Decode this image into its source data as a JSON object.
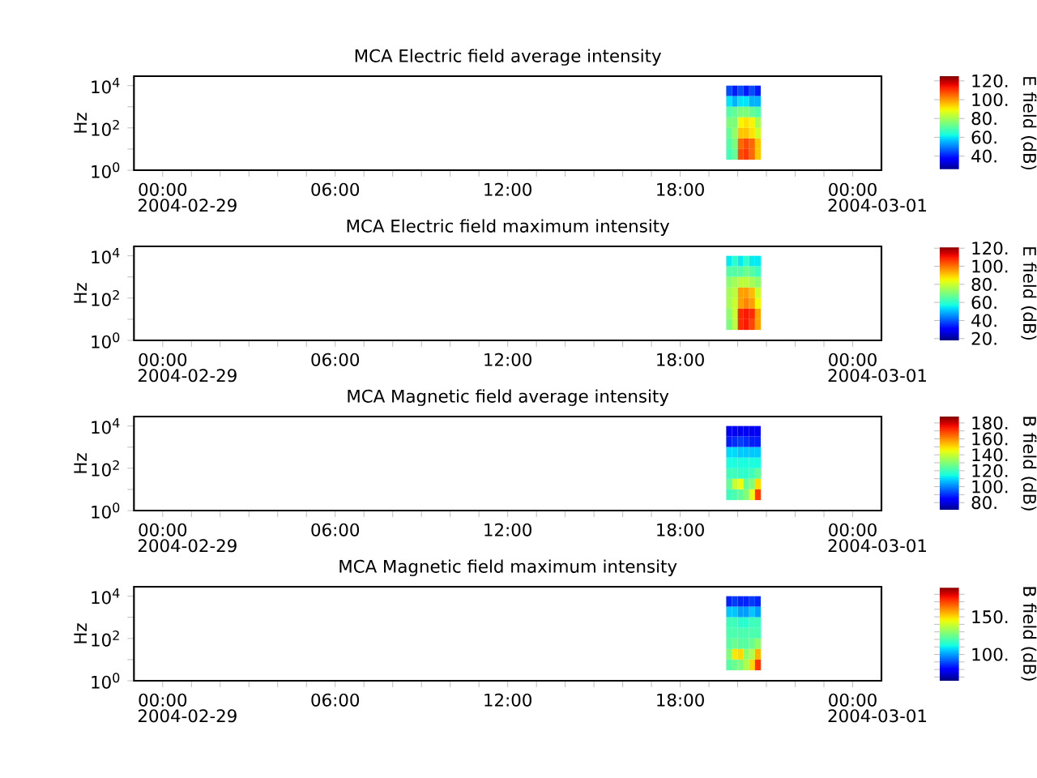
{
  "chart_data": [
    {
      "type": "heatmap",
      "title": "MCA  Electric field average intensity",
      "ylabel": "Hz",
      "clabel": "E field (dB)",
      "x": [
        19.7,
        19.9,
        20.1,
        20.3,
        20.5,
        20.7
      ],
      "y": [
        5623,
        1778,
        562,
        178,
        56,
        18,
        5.6
      ],
      "cells": [
        [
          45,
          40,
          45,
          40,
          45,
          40
        ],
        [
          60,
          55,
          60,
          60,
          55,
          55
        ],
        [
          70,
          72,
          75,
          75,
          72,
          70
        ],
        [
          75,
          75,
          90,
          92,
          90,
          80
        ],
        [
          72,
          78,
          95,
          95,
          92,
          85
        ],
        [
          70,
          75,
          105,
          108,
          105,
          95
        ],
        [
          68,
          72,
          108,
          110,
          105,
          95
        ]
      ],
      "clim": [
        25,
        125
      ],
      "cticks": [
        {
          "value": 40,
          "label": "40."
        },
        {
          "value": 60,
          "label": "60."
        },
        {
          "value": 80,
          "label": "80."
        },
        {
          "value": 100,
          "label": "100."
        },
        {
          "value": 120,
          "label": "120."
        }
      ],
      "log": "y",
      "xlim": [
        -1,
        25
      ],
      "ylim": [
        1,
        28000
      ],
      "xticks": [
        {
          "value": 0,
          "label": "00:00"
        },
        {
          "value": 1,
          "label": null
        },
        {
          "value": 2,
          "label": null
        },
        {
          "value": 3,
          "label": null
        },
        {
          "value": 4,
          "label": null
        },
        {
          "value": 5,
          "label": null
        },
        {
          "value": 6,
          "label": "06:00"
        },
        {
          "value": 7,
          "label": null
        },
        {
          "value": 8,
          "label": null
        },
        {
          "value": 9,
          "label": null
        },
        {
          "value": 10,
          "label": null
        },
        {
          "value": 11,
          "label": null
        },
        {
          "value": 12,
          "label": "12:00"
        },
        {
          "value": 13,
          "label": null
        },
        {
          "value": 14,
          "label": null
        },
        {
          "value": 15,
          "label": null
        },
        {
          "value": 16,
          "label": null
        },
        {
          "value": 17,
          "label": null
        },
        {
          "value": 18,
          "label": "18:00"
        },
        {
          "value": 19,
          "label": null
        },
        {
          "value": 20,
          "label": null
        },
        {
          "value": 21,
          "label": null
        },
        {
          "value": 22,
          "label": null
        },
        {
          "value": 23,
          "label": null
        },
        {
          "value": 24,
          "label": "00:00"
        }
      ],
      "yticks": [
        {
          "value": 1,
          "label": "10$^{0}$"
        },
        {
          "value": 10,
          "label": null
        },
        {
          "value": 100,
          "label": "10$^{2}$"
        },
        {
          "value": 1000,
          "label": null
        },
        {
          "value": 10000,
          "label": "10$^{4}$"
        }
      ],
      "annotations": [
        "2004-02-29",
        "2004-03-01"
      ]
    },
    {
      "type": "heatmap",
      "title": "MCA  Electric field maximum intensity",
      "ylabel": "Hz",
      "clabel": "E field (dB)",
      "x": [
        19.7,
        19.9,
        20.1,
        20.3,
        20.5,
        20.7
      ],
      "y": [
        5623,
        1778,
        562,
        178,
        56,
        18,
        5.6
      ],
      "cells": [
        [
          55,
          60,
          55,
          60,
          55,
          55
        ],
        [
          65,
          65,
          65,
          68,
          65,
          62
        ],
        [
          72,
          75,
          78,
          78,
          75,
          72
        ],
        [
          75,
          78,
          95,
          95,
          92,
          80
        ],
        [
          75,
          80,
          95,
          98,
          95,
          85
        ],
        [
          72,
          80,
          108,
          110,
          108,
          95
        ],
        [
          70,
          78,
          108,
          110,
          105,
          95
        ]
      ],
      "clim": [
        18,
        122
      ],
      "cticks": [
        {
          "value": 20,
          "label": "20."
        },
        {
          "value": 40,
          "label": "40."
        },
        {
          "value": 60,
          "label": "60."
        },
        {
          "value": 80,
          "label": "80."
        },
        {
          "value": 100,
          "label": "100."
        },
        {
          "value": 120,
          "label": "120."
        }
      ],
      "log": "y",
      "xlim": [
        -1,
        25
      ],
      "ylim": [
        1,
        28000
      ],
      "xticks": [
        {
          "value": 0,
          "label": "00:00"
        },
        {
          "value": 1,
          "label": null
        },
        {
          "value": 2,
          "label": null
        },
        {
          "value": 3,
          "label": null
        },
        {
          "value": 4,
          "label": null
        },
        {
          "value": 5,
          "label": null
        },
        {
          "value": 6,
          "label": "06:00"
        },
        {
          "value": 7,
          "label": null
        },
        {
          "value": 8,
          "label": null
        },
        {
          "value": 9,
          "label": null
        },
        {
          "value": 10,
          "label": null
        },
        {
          "value": 11,
          "label": null
        },
        {
          "value": 12,
          "label": "12:00"
        },
        {
          "value": 13,
          "label": null
        },
        {
          "value": 14,
          "label": null
        },
        {
          "value": 15,
          "label": null
        },
        {
          "value": 16,
          "label": null
        },
        {
          "value": 17,
          "label": null
        },
        {
          "value": 18,
          "label": "18:00"
        },
        {
          "value": 19,
          "label": null
        },
        {
          "value": 20,
          "label": null
        },
        {
          "value": 21,
          "label": null
        },
        {
          "value": 22,
          "label": null
        },
        {
          "value": 23,
          "label": null
        },
        {
          "value": 24,
          "label": "00:00"
        }
      ],
      "yticks": [
        {
          "value": 1,
          "label": "10$^{0}$"
        },
        {
          "value": 10,
          "label": null
        },
        {
          "value": 100,
          "label": "10$^{2}$"
        },
        {
          "value": 1000,
          "label": null
        },
        {
          "value": 10000,
          "label": "10$^{4}$"
        }
      ],
      "annotations": [
        "2004-02-29",
        "2004-03-01"
      ]
    },
    {
      "type": "heatmap",
      "title": "MCA  Magnetic field average intensity",
      "ylabel": "Hz",
      "clabel": "B field (dB)",
      "x": [
        19.7,
        19.9,
        20.1,
        20.3,
        20.5,
        20.7
      ],
      "y": [
        5623,
        1778,
        562,
        178,
        56,
        18,
        5.6
      ],
      "cells": [
        [
          82,
          82,
          82,
          82,
          82,
          82
        ],
        [
          88,
          90,
          92,
          90,
          88,
          88
        ],
        [
          110,
          110,
          108,
          108,
          108,
          108
        ],
        [
          115,
          115,
          115,
          115,
          115,
          115
        ],
        [
          120,
          120,
          118,
          118,
          120,
          125
        ],
        [
          125,
          140,
          145,
          125,
          130,
          150
        ],
        [
          120,
          122,
          125,
          130,
          145,
          170
        ]
      ],
      "clim": [
        70,
        188
      ],
      "cticks": [
        {
          "value": 80,
          "label": "80."
        },
        {
          "value": 90,
          "label": null
        },
        {
          "value": 100,
          "label": "100."
        },
        {
          "value": 110,
          "label": null
        },
        {
          "value": 120,
          "label": "120."
        },
        {
          "value": 130,
          "label": null
        },
        {
          "value": 140,
          "label": "140."
        },
        {
          "value": 150,
          "label": null
        },
        {
          "value": 160,
          "label": "160."
        },
        {
          "value": 170,
          "label": null
        },
        {
          "value": 180,
          "label": "180."
        }
      ],
      "log": "y",
      "xlim": [
        -1,
        25
      ],
      "ylim": [
        1,
        28000
      ],
      "xticks": [
        {
          "value": 0,
          "label": "00:00"
        },
        {
          "value": 1,
          "label": null
        },
        {
          "value": 2,
          "label": null
        },
        {
          "value": 3,
          "label": null
        },
        {
          "value": 4,
          "label": null
        },
        {
          "value": 5,
          "label": null
        },
        {
          "value": 6,
          "label": "06:00"
        },
        {
          "value": 7,
          "label": null
        },
        {
          "value": 8,
          "label": null
        },
        {
          "value": 9,
          "label": null
        },
        {
          "value": 10,
          "label": null
        },
        {
          "value": 11,
          "label": null
        },
        {
          "value": 12,
          "label": "12:00"
        },
        {
          "value": 13,
          "label": null
        },
        {
          "value": 14,
          "label": null
        },
        {
          "value": 15,
          "label": null
        },
        {
          "value": 16,
          "label": null
        },
        {
          "value": 17,
          "label": null
        },
        {
          "value": 18,
          "label": "18:00"
        },
        {
          "value": 19,
          "label": null
        },
        {
          "value": 20,
          "label": null
        },
        {
          "value": 21,
          "label": null
        },
        {
          "value": 22,
          "label": null
        },
        {
          "value": 23,
          "label": null
        },
        {
          "value": 24,
          "label": "00:00"
        }
      ],
      "yticks": [
        {
          "value": 1,
          "label": "10$^{0}$"
        },
        {
          "value": 10,
          "label": null
        },
        {
          "value": 100,
          "label": "10$^{2}$"
        },
        {
          "value": 1000,
          "label": null
        },
        {
          "value": 10000,
          "label": "10$^{4}$"
        }
      ],
      "annotations": [
        "2004-02-29",
        "2004-03-01"
      ]
    },
    {
      "type": "heatmap",
      "title": "MCA  Magnetic field maximum intensity",
      "ylabel": "Hz",
      "clabel": "B field (dB)",
      "x": [
        19.7,
        19.9,
        20.1,
        20.3,
        20.5,
        20.7
      ],
      "y": [
        5623,
        1778,
        562,
        178,
        56,
        18,
        5.6
      ],
      "cells": [
        [
          85,
          88,
          85,
          85,
          88,
          85
        ],
        [
          105,
          105,
          100,
          100,
          105,
          100
        ],
        [
          118,
          118,
          115,
          115,
          118,
          118
        ],
        [
          120,
          120,
          120,
          120,
          120,
          120
        ],
        [
          122,
          125,
          122,
          122,
          125,
          130
        ],
        [
          128,
          148,
          150,
          130,
          135,
          155
        ],
        [
          122,
          125,
          128,
          135,
          150,
          172
        ]
      ],
      "clim": [
        65,
        190
      ],
      "cticks": [
        {
          "value": 70,
          "label": null
        },
        {
          "value": 80,
          "label": null
        },
        {
          "value": 90,
          "label": null
        },
        {
          "value": 100,
          "label": "100."
        },
        {
          "value": 110,
          "label": null
        },
        {
          "value": 120,
          "label": null
        },
        {
          "value": 130,
          "label": null
        },
        {
          "value": 140,
          "label": null
        },
        {
          "value": 150,
          "label": "150."
        },
        {
          "value": 160,
          "label": null
        },
        {
          "value": 170,
          "label": null
        },
        {
          "value": 180,
          "label": null
        }
      ],
      "log": "y",
      "xlim": [
        -1,
        25
      ],
      "ylim": [
        1,
        28000
      ],
      "xticks": [
        {
          "value": 0,
          "label": "00:00"
        },
        {
          "value": 1,
          "label": null
        },
        {
          "value": 2,
          "label": null
        },
        {
          "value": 3,
          "label": null
        },
        {
          "value": 4,
          "label": null
        },
        {
          "value": 5,
          "label": null
        },
        {
          "value": 6,
          "label": "06:00"
        },
        {
          "value": 7,
          "label": null
        },
        {
          "value": 8,
          "label": null
        },
        {
          "value": 9,
          "label": null
        },
        {
          "value": 10,
          "label": null
        },
        {
          "value": 11,
          "label": null
        },
        {
          "value": 12,
          "label": "12:00"
        },
        {
          "value": 13,
          "label": null
        },
        {
          "value": 14,
          "label": null
        },
        {
          "value": 15,
          "label": null
        },
        {
          "value": 16,
          "label": null
        },
        {
          "value": 17,
          "label": null
        },
        {
          "value": 18,
          "label": "18:00"
        },
        {
          "value": 19,
          "label": null
        },
        {
          "value": 20,
          "label": null
        },
        {
          "value": 21,
          "label": null
        },
        {
          "value": 22,
          "label": null
        },
        {
          "value": 23,
          "label": null
        },
        {
          "value": 24,
          "label": "00:00"
        }
      ],
      "yticks": [
        {
          "value": 1,
          "label": "10$^{0}$"
        },
        {
          "value": 10,
          "label": null
        },
        {
          "value": 100,
          "label": "10$^{2}$"
        },
        {
          "value": 1000,
          "label": null
        },
        {
          "value": 10000,
          "label": "10$^{4}$"
        }
      ],
      "annotations": [
        "2004-02-29",
        "2004-03-01"
      ]
    }
  ]
}
